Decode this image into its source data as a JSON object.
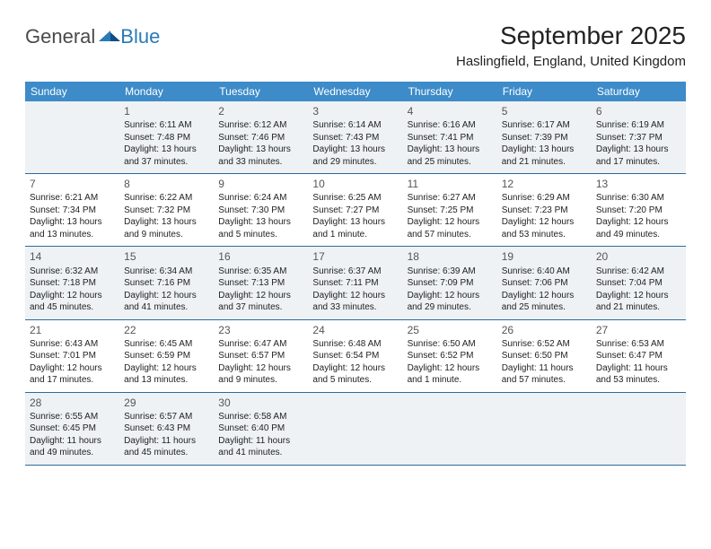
{
  "brand": {
    "part1": "General",
    "part2": "Blue"
  },
  "title": "September 2025",
  "location": "Haslingfield, England, United Kingdom",
  "colors": {
    "header_bg": "#3d8bc8",
    "header_text": "#ffffff",
    "row_border": "#2f6a9a",
    "shade_bg": "#eef2f5",
    "body_text": "#222222",
    "logo_gray": "#4a4a4a",
    "logo_blue": "#2a7ab8"
  },
  "weekdays": [
    "Sunday",
    "Monday",
    "Tuesday",
    "Wednesday",
    "Thursday",
    "Friday",
    "Saturday"
  ],
  "weeks": [
    {
      "shaded": true,
      "days": [
        null,
        {
          "n": "1",
          "sr": "6:11 AM",
          "ss": "7:48 PM",
          "dl": "Daylight: 13 hours and 37 minutes."
        },
        {
          "n": "2",
          "sr": "6:12 AM",
          "ss": "7:46 PM",
          "dl": "Daylight: 13 hours and 33 minutes."
        },
        {
          "n": "3",
          "sr": "6:14 AM",
          "ss": "7:43 PM",
          "dl": "Daylight: 13 hours and 29 minutes."
        },
        {
          "n": "4",
          "sr": "6:16 AM",
          "ss": "7:41 PM",
          "dl": "Daylight: 13 hours and 25 minutes."
        },
        {
          "n": "5",
          "sr": "6:17 AM",
          "ss": "7:39 PM",
          "dl": "Daylight: 13 hours and 21 minutes."
        },
        {
          "n": "6",
          "sr": "6:19 AM",
          "ss": "7:37 PM",
          "dl": "Daylight: 13 hours and 17 minutes."
        }
      ]
    },
    {
      "shaded": false,
      "days": [
        {
          "n": "7",
          "sr": "6:21 AM",
          "ss": "7:34 PM",
          "dl": "Daylight: 13 hours and 13 minutes."
        },
        {
          "n": "8",
          "sr": "6:22 AM",
          "ss": "7:32 PM",
          "dl": "Daylight: 13 hours and 9 minutes."
        },
        {
          "n": "9",
          "sr": "6:24 AM",
          "ss": "7:30 PM",
          "dl": "Daylight: 13 hours and 5 minutes."
        },
        {
          "n": "10",
          "sr": "6:25 AM",
          "ss": "7:27 PM",
          "dl": "Daylight: 13 hours and 1 minute."
        },
        {
          "n": "11",
          "sr": "6:27 AM",
          "ss": "7:25 PM",
          "dl": "Daylight: 12 hours and 57 minutes."
        },
        {
          "n": "12",
          "sr": "6:29 AM",
          "ss": "7:23 PM",
          "dl": "Daylight: 12 hours and 53 minutes."
        },
        {
          "n": "13",
          "sr": "6:30 AM",
          "ss": "7:20 PM",
          "dl": "Daylight: 12 hours and 49 minutes."
        }
      ]
    },
    {
      "shaded": true,
      "days": [
        {
          "n": "14",
          "sr": "6:32 AM",
          "ss": "7:18 PM",
          "dl": "Daylight: 12 hours and 45 minutes."
        },
        {
          "n": "15",
          "sr": "6:34 AM",
          "ss": "7:16 PM",
          "dl": "Daylight: 12 hours and 41 minutes."
        },
        {
          "n": "16",
          "sr": "6:35 AM",
          "ss": "7:13 PM",
          "dl": "Daylight: 12 hours and 37 minutes."
        },
        {
          "n": "17",
          "sr": "6:37 AM",
          "ss": "7:11 PM",
          "dl": "Daylight: 12 hours and 33 minutes."
        },
        {
          "n": "18",
          "sr": "6:39 AM",
          "ss": "7:09 PM",
          "dl": "Daylight: 12 hours and 29 minutes."
        },
        {
          "n": "19",
          "sr": "6:40 AM",
          "ss": "7:06 PM",
          "dl": "Daylight: 12 hours and 25 minutes."
        },
        {
          "n": "20",
          "sr": "6:42 AM",
          "ss": "7:04 PM",
          "dl": "Daylight: 12 hours and 21 minutes."
        }
      ]
    },
    {
      "shaded": false,
      "days": [
        {
          "n": "21",
          "sr": "6:43 AM",
          "ss": "7:01 PM",
          "dl": "Daylight: 12 hours and 17 minutes."
        },
        {
          "n": "22",
          "sr": "6:45 AM",
          "ss": "6:59 PM",
          "dl": "Daylight: 12 hours and 13 minutes."
        },
        {
          "n": "23",
          "sr": "6:47 AM",
          "ss": "6:57 PM",
          "dl": "Daylight: 12 hours and 9 minutes."
        },
        {
          "n": "24",
          "sr": "6:48 AM",
          "ss": "6:54 PM",
          "dl": "Daylight: 12 hours and 5 minutes."
        },
        {
          "n": "25",
          "sr": "6:50 AM",
          "ss": "6:52 PM",
          "dl": "Daylight: 12 hours and 1 minute."
        },
        {
          "n": "26",
          "sr": "6:52 AM",
          "ss": "6:50 PM",
          "dl": "Daylight: 11 hours and 57 minutes."
        },
        {
          "n": "27",
          "sr": "6:53 AM",
          "ss": "6:47 PM",
          "dl": "Daylight: 11 hours and 53 minutes."
        }
      ]
    },
    {
      "shaded": true,
      "days": [
        {
          "n": "28",
          "sr": "6:55 AM",
          "ss": "6:45 PM",
          "dl": "Daylight: 11 hours and 49 minutes."
        },
        {
          "n": "29",
          "sr": "6:57 AM",
          "ss": "6:43 PM",
          "dl": "Daylight: 11 hours and 45 minutes."
        },
        {
          "n": "30",
          "sr": "6:58 AM",
          "ss": "6:40 PM",
          "dl": "Daylight: 11 hours and 41 minutes."
        },
        null,
        null,
        null,
        null
      ]
    }
  ],
  "labels": {
    "sunrise": "Sunrise:",
    "sunset": "Sunset:"
  }
}
